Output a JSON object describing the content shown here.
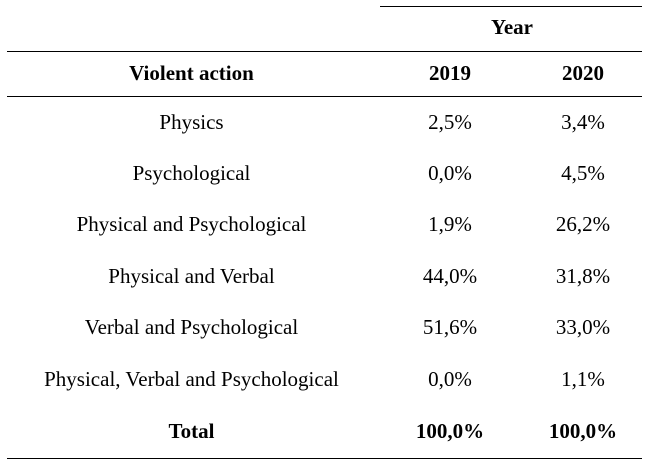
{
  "table": {
    "group_header": "Year",
    "columns": [
      "Violent action",
      "2019",
      "2020"
    ],
    "rows": [
      {
        "action": "Physics",
        "y2019": "2,5%",
        "y2020": "3,4%"
      },
      {
        "action": "Psychological",
        "y2019": "0,0%",
        "y2020": "4,5%"
      },
      {
        "action": "Physical and Psychological",
        "y2019": "1,9%",
        "y2020": "26,2%"
      },
      {
        "action": "Physical and Verbal",
        "y2019": "44,0%",
        "y2020": "31,8%"
      },
      {
        "action": "Verbal and Psychological",
        "y2019": "51,6%",
        "y2020": "33,0%"
      },
      {
        "action": "Physical, Verbal and Psychological",
        "y2019": "0,0%",
        "y2020": "1,1%"
      }
    ],
    "total": {
      "action": "Total",
      "y2019": "100,0%",
      "y2020": "100,0%"
    }
  }
}
